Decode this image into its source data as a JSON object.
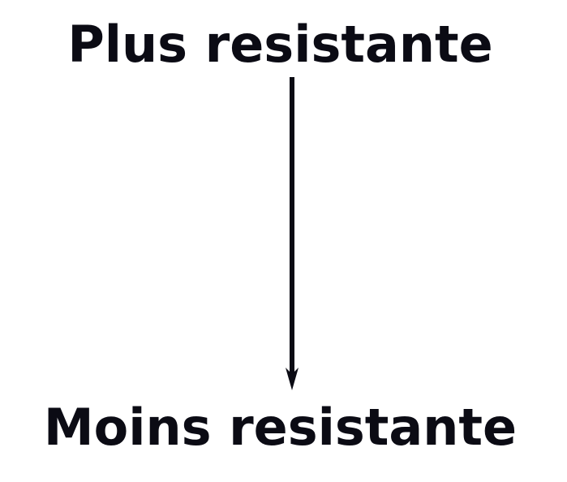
{
  "diagram": {
    "top_label": "Plus resistante",
    "bottom_label": "Moins resistante",
    "arrow_direction": "down",
    "text_color": "#0b0b14",
    "arrow_color": "#0b0b14",
    "background_color": "#ffffff"
  }
}
